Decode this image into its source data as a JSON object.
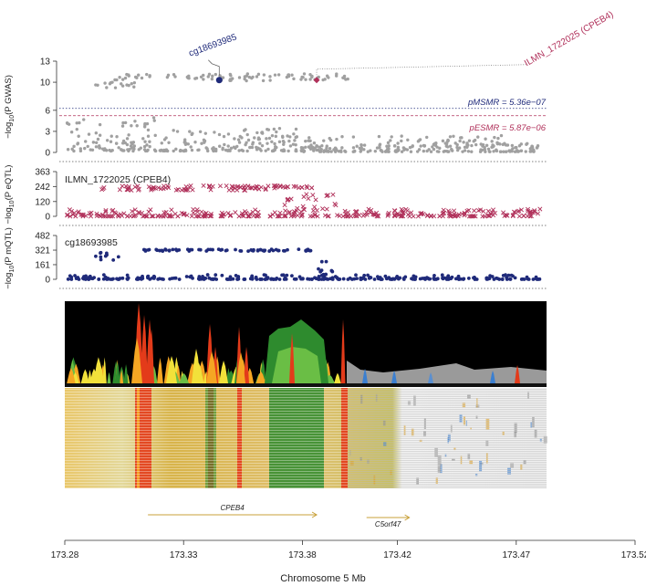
{
  "chart_data": {
    "type": "scatter",
    "xlabel": "Chromosome 5 Mb",
    "xlim": [
      173.28,
      173.52
    ],
    "xticks": [
      "173.28",
      "173.33",
      "173.38",
      "173.42",
      "173.47",
      "173.52"
    ],
    "panels": [
      {
        "id": "gwas",
        "ylabel_pre": "−log",
        "ylabel_sub": "10",
        "ylabel_post": "(P GWAS)",
        "ylim": [
          0,
          13
        ],
        "yticks": [
          "0",
          "3",
          "6",
          "10",
          "13"
        ],
        "marker": "dot",
        "color": "#a0a0a0",
        "thresholds": [
          {
            "label": "pMSMR = 5.36e−07",
            "value": 6.27,
            "color": "#1f2a7a"
          },
          {
            "label": "pESMR = 5.87e−06",
            "value": 5.23,
            "color": "#b0305a"
          }
        ],
        "highlights": [
          {
            "label": "cg18693985",
            "x": 173.345,
            "y": 10.3,
            "color": "#1f2a7a",
            "shape": "circle"
          },
          {
            "label": "ILMN_1722025 (CPEB4)",
            "x": 173.386,
            "y": 10.3,
            "color": "#b0305a",
            "shape": "diamond"
          }
        ],
        "dense_segments": [
          {
            "from": 173.281,
            "to": 173.318,
            "y": [
              0.2,
              5
            ]
          },
          {
            "from": 173.318,
            "to": 173.38,
            "y": [
              0.2,
              3.5
            ]
          },
          {
            "from": 173.38,
            "to": 173.47,
            "y": [
              0.1,
              2.4
            ]
          },
          {
            "from": 173.47,
            "to": 173.48,
            "y": [
              0.1,
              1.3
            ]
          }
        ],
        "bands": [
          {
            "from": 173.293,
            "to": 173.31,
            "y": [
              9.2,
              10
            ]
          },
          {
            "from": 173.3,
            "to": 173.4,
            "y": [
              10.2,
              11.2
            ]
          }
        ]
      },
      {
        "id": "eqtl",
        "title": "ILMN_1722025 (CPEB4)",
        "ylabel_pre": "−log",
        "ylabel_sub": "10",
        "ylabel_post": "(P eQTL)",
        "ylim": [
          0,
          363
        ],
        "yticks": [
          "0",
          "120",
          "242",
          "363"
        ],
        "marker": "cross",
        "color": "#b0305a",
        "dense_segments": [
          {
            "from": 173.281,
            "to": 173.48,
            "y": [
              0,
              60
            ]
          }
        ],
        "bands": [
          {
            "from": 173.295,
            "to": 173.37,
            "y": [
              210,
              250
            ]
          },
          {
            "from": 173.35,
            "to": 173.385,
            "y": [
              230,
              250
            ]
          },
          {
            "from": 173.37,
            "to": 173.395,
            "y": [
              40,
              180
            ]
          }
        ]
      },
      {
        "id": "mqtl",
        "title": "cg18693985",
        "ylabel_pre": "−log",
        "ylabel_sub": "10",
        "ylabel_post": "(P mQTL)",
        "ylim": [
          0,
          482
        ],
        "yticks": [
          "0",
          "161",
          "321",
          "482"
        ],
        "marker": "dot",
        "color": "#1f2a7a",
        "dense_segments": [
          {
            "from": 173.281,
            "to": 173.48,
            "y": [
              0,
              50
            ]
          }
        ],
        "bands": [
          {
            "from": 173.292,
            "to": 173.303,
            "y": [
              200,
              300
            ]
          },
          {
            "from": 173.312,
            "to": 173.385,
            "y": [
              310,
              330
            ]
          },
          {
            "from": 173.385,
            "to": 173.395,
            "y": [
              50,
              200
            ]
          }
        ]
      }
    ],
    "genes": [
      {
        "name": "CPEB4",
        "start": 173.315,
        "end": 173.386,
        "strand": "+"
      },
      {
        "name": "C5orf47",
        "start": 173.407,
        "end": 173.425,
        "strand": "+"
      }
    ],
    "grid": false
  },
  "colors": {
    "track_bg": "#000000",
    "red": "#e33b1a",
    "orange": "#f5a623",
    "yellow": "#f2e13a",
    "green": "#2e8b2e",
    "light_green": "#6abe45",
    "grey": "#9a9a9a",
    "gene_arrow": "#c8a038"
  }
}
